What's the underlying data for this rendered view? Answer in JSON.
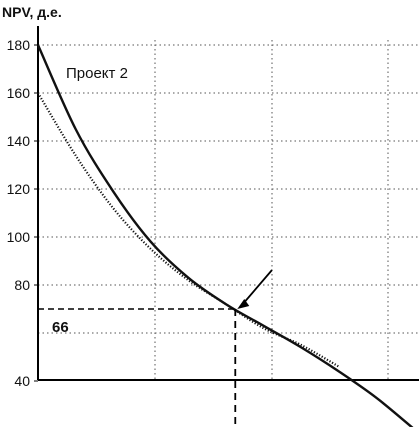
{
  "chart_data": {
    "type": "line",
    "ylabel": "NPV, д.е.",
    "y_ticks": [
      "180",
      "160",
      "140",
      "120",
      "100",
      "80",
      "40"
    ],
    "ylim": [
      20,
      185
    ],
    "grid": true,
    "x": [
      0,
      1,
      2,
      3,
      4,
      5,
      6,
      7,
      8,
      9,
      10
    ],
    "series": [
      {
        "name": "Проект 2",
        "style": "solid",
        "values": [
          180,
          145,
          119,
          98,
          83,
          72,
          63,
          54,
          44,
          33,
          20
        ]
      },
      {
        "name": "",
        "style": "dotted",
        "values": [
          160,
          134,
          112,
          95,
          82,
          72,
          62,
          55,
          46,
          null,
          null
        ]
      }
    ],
    "annotations": [
      {
        "label": "66",
        "x": 5.3,
        "y": 70,
        "style": "dashed-crosshair"
      }
    ],
    "colors": {
      "line": "#111111",
      "grid": "#555555",
      "axis": "#000000"
    }
  }
}
